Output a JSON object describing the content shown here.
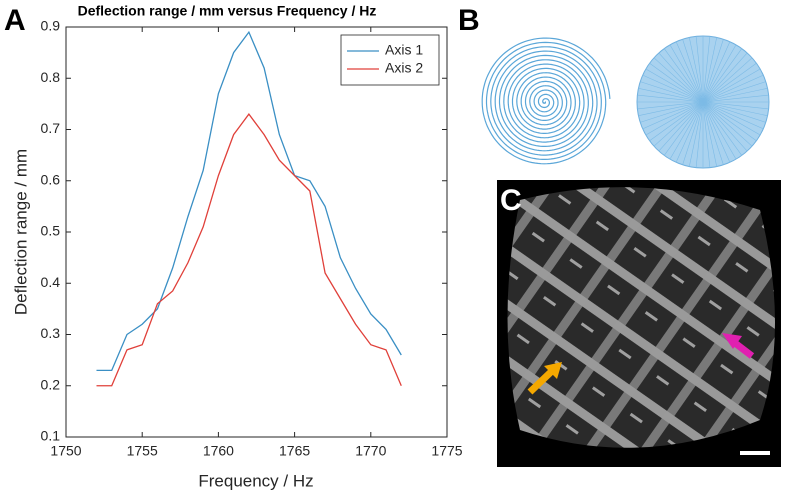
{
  "panel_labels": [
    "A",
    "B",
    "C"
  ],
  "chart_data": {
    "type": "line",
    "title": "Deflection range / mm versus Frequency / Hz",
    "x_label": "Frequency / Hz",
    "y_label": "Deflection range / mm",
    "x": [
      1752,
      1753,
      1754,
      1755,
      1756,
      1757,
      1758,
      1759,
      1760,
      1761,
      1762,
      1763,
      1764,
      1765,
      1766,
      1767,
      1768,
      1769,
      1770,
      1771,
      1772
    ],
    "series": [
      {
        "name": "Axis 1",
        "color": "#3a8fc4",
        "values": [
          0.23,
          0.23,
          0.3,
          0.32,
          0.35,
          0.43,
          0.53,
          0.62,
          0.77,
          0.85,
          0.89,
          0.82,
          0.69,
          0.61,
          0.6,
          0.55,
          0.45,
          0.39,
          0.34,
          0.31,
          0.26
        ]
      },
      {
        "name": "Axis 2",
        "color": "#e0403a",
        "values": [
          0.2,
          0.2,
          0.27,
          0.28,
          0.36,
          0.385,
          0.44,
          0.51,
          0.61,
          0.69,
          0.73,
          0.69,
          0.64,
          0.61,
          0.58,
          0.42,
          0.37,
          0.32,
          0.28,
          0.27,
          0.2
        ]
      }
    ],
    "xlim": [
      1750,
      1775
    ],
    "xticks": [
      1750,
      1755,
      1760,
      1765,
      1770,
      1775
    ],
    "ylim": [
      0.1,
      0.9
    ],
    "yticks": [
      0.1,
      0.2,
      0.3,
      0.4,
      0.5,
      0.6,
      0.7,
      0.8,
      0.9
    ],
    "legend": "upper right"
  }
}
